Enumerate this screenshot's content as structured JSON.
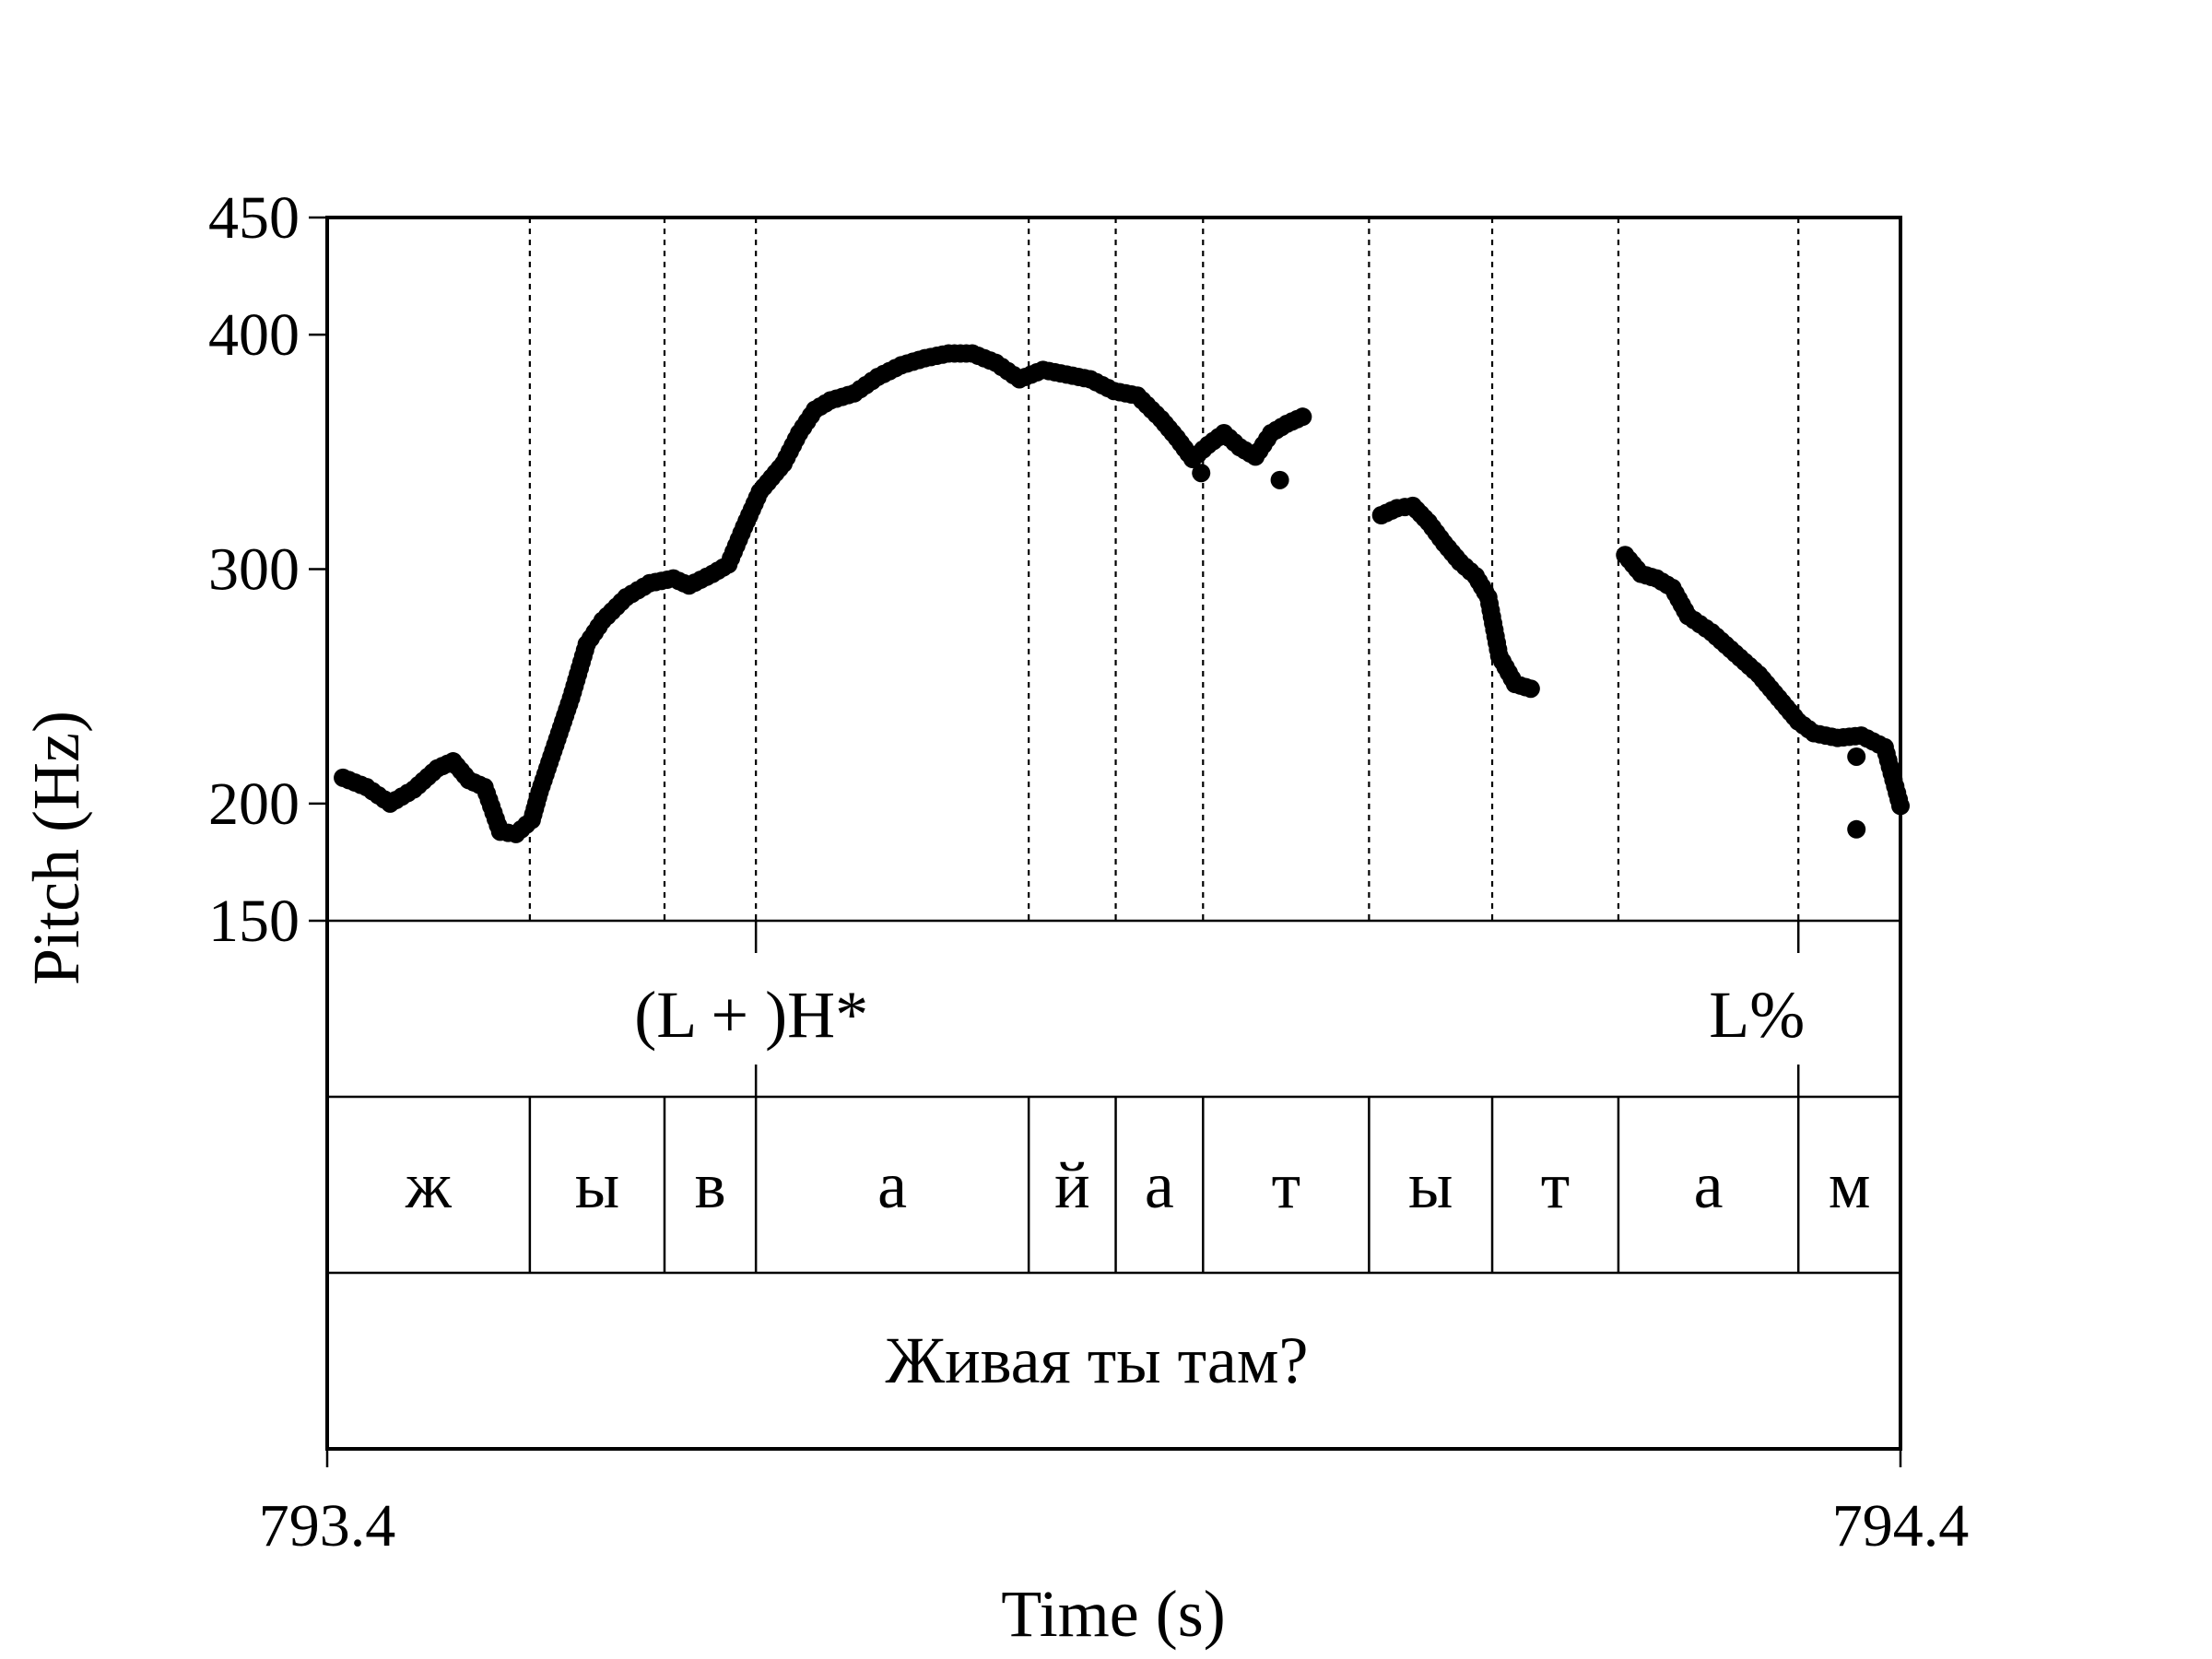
{
  "chart_data": {
    "type": "scatter",
    "xlabel": "Time (s)",
    "ylabel": "Pitch (Hz)",
    "xlim": [
      793.4,
      794.4
    ],
    "ylim": [
      150,
      450
    ],
    "x_tick_labels": [
      "793.4",
      "794.4"
    ],
    "y_ticks": [
      150,
      200,
      300,
      400,
      450
    ],
    "boundaries": [
      793.5288,
      793.6144,
      793.6725,
      793.8459,
      793.9012,
      793.9567,
      794.0622,
      794.1405,
      794.2207,
      794.3351
    ],
    "tones": [
      {
        "label": "(L + )H*",
        "time": 793.6725
      },
      {
        "label": "L%",
        "time": 794.3351
      }
    ],
    "segments": [
      {
        "label": "ж",
        "start": 793.4,
        "end": 793.5288
      },
      {
        "label": "ы",
        "start": 793.5288,
        "end": 793.6144
      },
      {
        "label": "в",
        "start": 793.6144,
        "end": 793.6725
      },
      {
        "label": "а",
        "start": 793.6725,
        "end": 793.8459
      },
      {
        "label": "й",
        "start": 793.8459,
        "end": 793.9012
      },
      {
        "label": "а",
        "start": 793.9012,
        "end": 793.9567
      },
      {
        "label": "т",
        "start": 793.9567,
        "end": 794.0622
      },
      {
        "label": "ы",
        "start": 794.0622,
        "end": 794.1405
      },
      {
        "label": "т",
        "start": 794.1405,
        "end": 794.2207
      },
      {
        "label": "а",
        "start": 794.2207,
        "end": 794.3351
      },
      {
        "label": "м",
        "start": 794.3351,
        "end": 794.4
      }
    ],
    "sentence": "Живая ты там?",
    "pitch_contours": [
      [
        [
          793.41,
          211
        ],
        [
          793.425,
          207
        ],
        [
          793.44,
          200
        ],
        [
          793.455,
          206
        ],
        [
          793.47,
          215
        ],
        [
          793.48,
          218
        ],
        [
          793.49,
          210
        ],
        [
          793.5,
          207
        ],
        [
          793.51,
          188
        ],
        [
          793.52,
          187
        ],
        [
          793.53,
          193
        ],
        [
          793.535,
          205
        ],
        [
          793.545,
          225
        ],
        [
          793.555,
          245
        ],
        [
          793.565,
          268
        ],
        [
          793.575,
          278
        ],
        [
          793.59,
          288
        ],
        [
          793.605,
          294
        ],
        [
          793.62,
          296
        ],
        [
          793.63,
          293
        ],
        [
          793.645,
          298
        ],
        [
          793.655,
          302
        ],
        [
          793.665,
          318
        ],
        [
          793.675,
          333
        ],
        [
          793.69,
          345
        ],
        [
          793.7,
          358
        ],
        [
          793.71,
          368
        ],
        [
          793.72,
          372
        ],
        [
          793.735,
          375
        ],
        [
          793.75,
          382
        ],
        [
          793.765,
          387
        ],
        [
          793.78,
          390
        ],
        [
          793.795,
          392
        ],
        [
          793.81,
          392
        ],
        [
          793.825,
          388
        ],
        [
          793.84,
          381
        ],
        [
          793.855,
          385
        ],
        [
          793.87,
          383
        ],
        [
          793.885,
          381
        ],
        [
          793.9,
          376
        ],
        [
          793.915,
          374
        ],
        [
          793.93,
          364
        ],
        [
          793.94,
          356
        ],
        [
          793.95,
          347
        ],
        [
          793.96,
          353
        ],
        [
          793.97,
          358
        ],
        [
          793.98,
          352
        ],
        [
          793.99,
          348
        ],
        [
          794.0,
          358
        ],
        [
          794.01,
          362
        ],
        [
          794.02,
          365
        ]
      ],
      [
        [
          794.07,
          323
        ],
        [
          794.08,
          326
        ],
        [
          794.09,
          327
        ],
        [
          794.1,
          320
        ],
        [
          794.11,
          311
        ],
        [
          794.12,
          303
        ],
        [
          794.13,
          297
        ],
        [
          794.138,
          288
        ],
        [
          794.145,
          263
        ],
        [
          794.155,
          251
        ],
        [
          794.165,
          249
        ]
      ],
      [
        [
          794.225,
          306
        ],
        [
          794.235,
          298
        ],
        [
          794.245,
          296
        ],
        [
          794.255,
          292
        ],
        [
          794.265,
          280
        ],
        [
          794.28,
          273
        ],
        [
          794.295,
          264
        ],
        [
          794.31,
          255
        ],
        [
          794.325,
          243
        ],
        [
          794.335,
          235
        ],
        [
          794.345,
          230
        ],
        [
          794.36,
          228
        ],
        [
          794.375,
          229
        ],
        [
          794.39,
          224
        ],
        [
          794.4,
          199
        ]
      ]
    ],
    "outlier_points": [
      [
        793.9555,
        341
      ],
      [
        794.0055,
        338
      ],
      [
        794.372,
        220
      ],
      [
        794.372,
        189
      ]
    ]
  }
}
